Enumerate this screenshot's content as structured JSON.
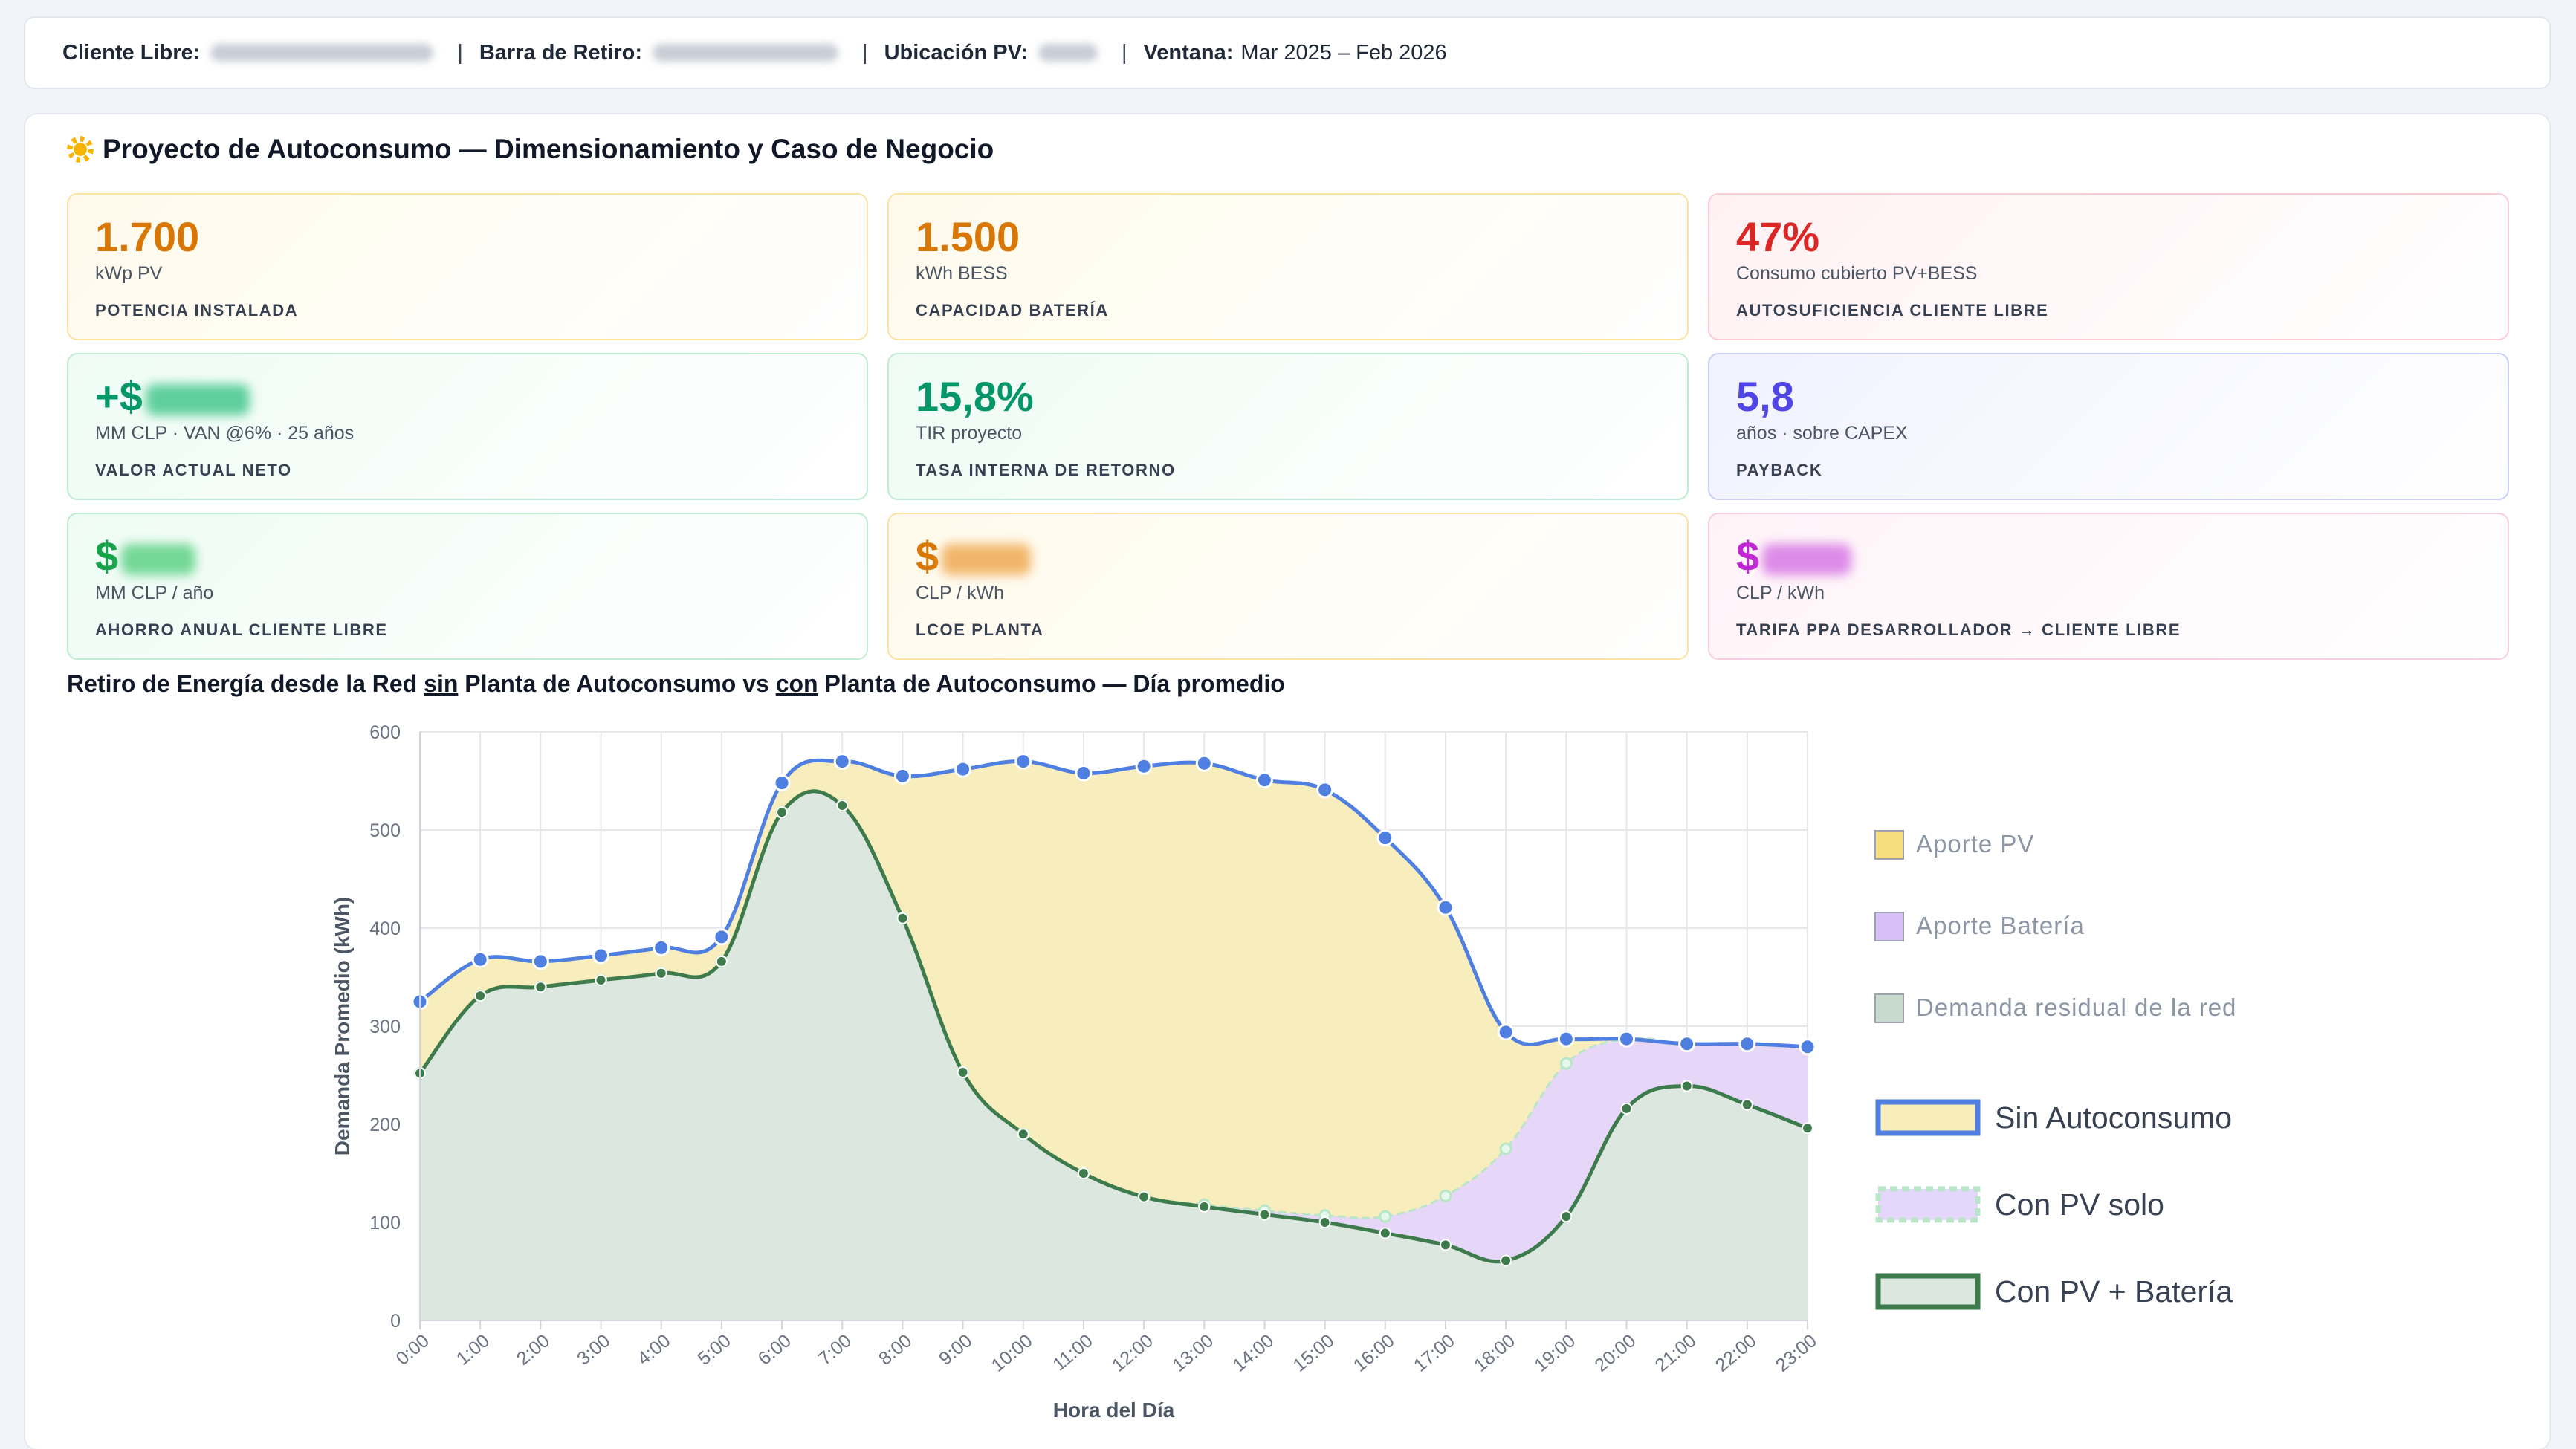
{
  "header": {
    "cliente_label": "Cliente Libre:",
    "barra_label": "Barra de Retiro:",
    "ubicacion_label": "Ubicación PV:",
    "ventana_label": "Ventana:",
    "ventana_value": "Mar 2025 – Feb 2026",
    "separator": "|"
  },
  "main": {
    "icon": "sun-icon",
    "title": "Proyecto de Autoconsumo — Dimensionamiento y Caso de Negocio"
  },
  "kpis": [
    {
      "value": "1.700",
      "unit": "kWp PV",
      "label": "POTENCIA INSTALADA",
      "color": "#d97706"
    },
    {
      "value": "1.500",
      "unit": "kWh BESS",
      "label": "CAPACIDAD BATERÍA",
      "color": "#d97706"
    },
    {
      "value": "47%",
      "unit": "Consumo cubierto PV+BESS",
      "label": "AUTOSUFICIENCIA CLIENTE LIBRE",
      "color": "#dc2626"
    },
    {
      "value_prefix": "+$",
      "unit": "MM CLP · VAN @6% · 25 años",
      "label": "VALOR ACTUAL NETO",
      "color": "#059669"
    },
    {
      "value": "15,8%",
      "unit": "TIR proyecto",
      "label": "TASA INTERNA DE RETORNO",
      "color": "#059669"
    },
    {
      "value": "5,8",
      "unit": "años · sobre CAPEX",
      "label": "PAYBACK",
      "color": "#4f46e5"
    },
    {
      "value_prefix": "$",
      "unit": "MM CLP / año",
      "label": "AHORRO ANUAL CLIENTE LIBRE",
      "color": "#16a34a"
    },
    {
      "value_prefix": "$",
      "unit": "CLP / kWh",
      "label": "LCOE PLANTA",
      "color": "#d97706"
    },
    {
      "value_prefix": "$",
      "unit": "CLP / kWh",
      "label": "TARIFA PPA DESARROLLADOR → CLIENTE LIBRE",
      "color": "#c026d3"
    }
  ],
  "chart_heading": {
    "part1": "Retiro de Energía desde la Red ",
    "sin": "sin",
    "part2": " Planta de Autoconsumo vs ",
    "con": "con",
    "part3": " Planta de Autoconsumo — Día promedio"
  },
  "chart_data": {
    "type": "area",
    "title": "",
    "xlabel": "Hora del Día",
    "ylabel": "Demanda Promedio (kWh)",
    "ylim": [
      0,
      600
    ],
    "yticks": [
      0,
      100,
      200,
      300,
      400,
      500,
      600
    ],
    "categories": [
      "0:00",
      "1:00",
      "2:00",
      "3:00",
      "4:00",
      "5:00",
      "6:00",
      "7:00",
      "8:00",
      "9:00",
      "10:00",
      "11:00",
      "12:00",
      "13:00",
      "14:00",
      "15:00",
      "16:00",
      "17:00",
      "18:00",
      "19:00",
      "20:00",
      "21:00",
      "22:00",
      "23:00"
    ],
    "grid": true,
    "legend_position": "right",
    "series": [
      {
        "name": "Sin Autoconsumo",
        "color": "#4f7fe0",
        "fill": "#f8ecb8",
        "values": [
          325,
          368,
          366,
          372,
          380,
          391,
          548,
          570,
          555,
          562,
          570,
          558,
          565,
          568,
          551,
          541,
          492,
          421,
          294,
          287,
          287,
          282,
          282,
          279
        ]
      },
      {
        "name": "Con PV solo",
        "color": "#b8e6c7",
        "fill": "#e5d6fb",
        "values": [
          252,
          331,
          340,
          347,
          354,
          366,
          518,
          525,
          410,
          253,
          190,
          150,
          126,
          118,
          112,
          107,
          106,
          127,
          175,
          262,
          287,
          282,
          282,
          279
        ]
      },
      {
        "name": "Con PV + Batería",
        "color": "#3e7b4c",
        "fill": "#dbe7df",
        "values": [
          252,
          331,
          340,
          347,
          354,
          366,
          518,
          525,
          410,
          253,
          190,
          150,
          126,
          116,
          108,
          100,
          89,
          77,
          61,
          106,
          216,
          239,
          220,
          196
        ]
      }
    ],
    "legend_fills": [
      {
        "name": "Aporte PV",
        "color": "#f6dd7e"
      },
      {
        "name": "Aporte Batería",
        "color": "#d8bff8"
      },
      {
        "name": "Demanda residual de la red",
        "color": "#c8dacd"
      }
    ]
  }
}
